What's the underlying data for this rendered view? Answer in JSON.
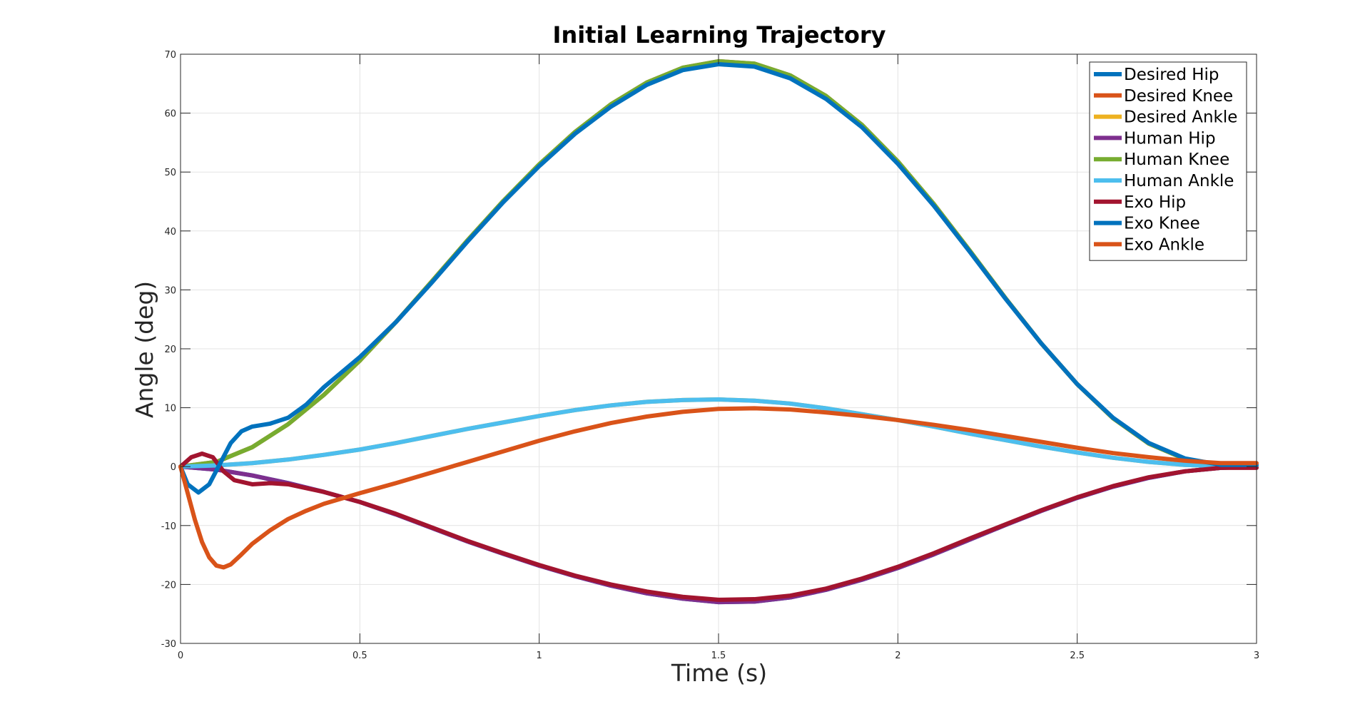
{
  "chart_data": {
    "type": "line",
    "title": "Initial Learning Trajectory",
    "xlabel": "Time (s)",
    "ylabel": "Angle (deg)",
    "xlim": [
      0,
      3
    ],
    "ylim": [
      -30,
      70
    ],
    "xticks": [
      0,
      0.5,
      1,
      1.5,
      2,
      2.5,
      3
    ],
    "xtick_labels": [
      "0",
      "0.5",
      "1",
      "1.5",
      "2",
      "2.5",
      "3"
    ],
    "yticks": [
      -30,
      -20,
      -10,
      0,
      10,
      20,
      30,
      40,
      50,
      60,
      70
    ],
    "ytick_labels": [
      "-30",
      "-20",
      "-10",
      "0",
      "10",
      "20",
      "30",
      "40",
      "50",
      "60",
      "70"
    ],
    "grid": true,
    "legend_position": "top-right",
    "series": [
      {
        "name": "Desired Hip",
        "color": "#0072BD",
        "x": [
          0,
          0.1,
          0.2,
          0.3,
          0.4,
          0.5,
          0.6,
          0.7,
          0.8,
          0.9,
          1.0,
          1.1,
          1.2,
          1.3,
          1.4,
          1.5,
          1.6,
          1.7,
          1.8,
          1.9,
          2.0,
          2.1,
          2.2,
          2.3,
          2.4,
          2.5,
          2.6,
          2.7,
          2.8,
          2.9,
          3.0
        ],
        "y": [
          0,
          -0.5,
          -1.5,
          -2.8,
          -4.3,
          -6.0,
          -8.1,
          -10.4,
          -12.7,
          -14.8,
          -16.8,
          -18.6,
          -20.2,
          -21.5,
          -22.4,
          -23.0,
          -22.9,
          -22.2,
          -20.9,
          -19.2,
          -17.2,
          -14.9,
          -12.4,
          -9.9,
          -7.5,
          -5.3,
          -3.4,
          -1.9,
          -0.8,
          -0.2,
          0
        ]
      },
      {
        "name": "Desired Knee",
        "color": "#D95319",
        "x": [
          0,
          0.1,
          0.2,
          0.3,
          0.4,
          0.5,
          0.6,
          0.7,
          0.8,
          0.9,
          1.0,
          1.1,
          1.2,
          1.3,
          1.4,
          1.5,
          1.6,
          1.7,
          1.8,
          1.9,
          2.0,
          2.1,
          2.2,
          2.3,
          2.4,
          2.5,
          2.6,
          2.7,
          2.8,
          2.9,
          3.0
        ],
        "y": [
          0,
          0.8,
          3.3,
          7.2,
          12.2,
          18.0,
          24.5,
          31.4,
          38.4,
          45.1,
          51.3,
          56.8,
          61.5,
          65.2,
          67.7,
          68.8,
          68.4,
          66.4,
          62.9,
          58.0,
          51.8,
          44.6,
          36.7,
          28.6,
          20.9,
          14.0,
          8.2,
          3.9,
          1.3,
          0.2,
          0
        ]
      },
      {
        "name": "Desired Ankle",
        "color": "#EDB120",
        "x": [
          0,
          0.1,
          0.2,
          0.3,
          0.4,
          0.5,
          0.6,
          0.7,
          0.8,
          0.9,
          1.0,
          1.1,
          1.2,
          1.3,
          1.4,
          1.5,
          1.6,
          1.7,
          1.8,
          1.9,
          2.0,
          2.1,
          2.2,
          2.3,
          2.4,
          2.5,
          2.6,
          2.7,
          2.8,
          2.9,
          3.0
        ],
        "y": [
          0,
          0.2,
          0.6,
          1.2,
          2.0,
          2.9,
          4.0,
          5.2,
          6.4,
          7.5,
          8.6,
          9.6,
          10.4,
          11.0,
          11.3,
          11.4,
          11.2,
          10.7,
          9.9,
          8.9,
          7.9,
          6.8,
          5.6,
          4.5,
          3.4,
          2.4,
          1.5,
          0.8,
          0.3,
          0.1,
          0
        ]
      },
      {
        "name": "Human Hip",
        "color": "#7E2F8E",
        "x": [
          0,
          0.1,
          0.2,
          0.3,
          0.4,
          0.5,
          0.6,
          0.7,
          0.8,
          0.9,
          1.0,
          1.1,
          1.2,
          1.3,
          1.4,
          1.5,
          1.6,
          1.7,
          1.8,
          1.9,
          2.0,
          2.1,
          2.2,
          2.3,
          2.4,
          2.5,
          2.6,
          2.7,
          2.8,
          2.9,
          3.0
        ],
        "y": [
          0,
          -0.5,
          -1.5,
          -2.8,
          -4.3,
          -6.0,
          -8.1,
          -10.4,
          -12.7,
          -14.8,
          -16.8,
          -18.6,
          -20.2,
          -21.5,
          -22.4,
          -23.0,
          -22.9,
          -22.2,
          -20.9,
          -19.2,
          -17.2,
          -14.9,
          -12.4,
          -9.9,
          -7.5,
          -5.3,
          -3.4,
          -1.9,
          -0.8,
          -0.2,
          0
        ]
      },
      {
        "name": "Human Knee",
        "color": "#77AC30",
        "x": [
          0,
          0.1,
          0.2,
          0.3,
          0.4,
          0.5,
          0.6,
          0.7,
          0.8,
          0.9,
          1.0,
          1.1,
          1.2,
          1.3,
          1.4,
          1.5,
          1.6,
          1.7,
          1.8,
          1.9,
          2.0,
          2.1,
          2.2,
          2.3,
          2.4,
          2.5,
          2.6,
          2.7,
          2.8,
          2.9,
          3.0
        ],
        "y": [
          0,
          0.8,
          3.3,
          7.2,
          12.2,
          18.0,
          24.5,
          31.4,
          38.4,
          45.1,
          51.3,
          56.8,
          61.5,
          65.2,
          67.7,
          68.8,
          68.4,
          66.4,
          62.9,
          58.0,
          51.8,
          44.6,
          36.7,
          28.6,
          20.9,
          14.0,
          8.2,
          3.9,
          1.3,
          0.2,
          0
        ]
      },
      {
        "name": "Human Ankle",
        "color": "#4DBEEE",
        "x": [
          0,
          0.1,
          0.2,
          0.3,
          0.4,
          0.5,
          0.6,
          0.7,
          0.8,
          0.9,
          1.0,
          1.1,
          1.2,
          1.3,
          1.4,
          1.5,
          1.6,
          1.7,
          1.8,
          1.9,
          2.0,
          2.1,
          2.2,
          2.3,
          2.4,
          2.5,
          2.6,
          2.7,
          2.8,
          2.9,
          3.0
        ],
        "y": [
          0,
          0.2,
          0.6,
          1.2,
          2.0,
          2.9,
          4.0,
          5.2,
          6.4,
          7.5,
          8.6,
          9.6,
          10.4,
          11.0,
          11.3,
          11.4,
          11.2,
          10.7,
          9.9,
          8.9,
          7.9,
          6.8,
          5.6,
          4.5,
          3.4,
          2.4,
          1.5,
          0.8,
          0.3,
          0.1,
          0
        ]
      },
      {
        "name": "Exo Hip",
        "color": "#A2142F",
        "x": [
          0,
          0.03,
          0.06,
          0.09,
          0.12,
          0.15,
          0.2,
          0.25,
          0.3,
          0.4,
          0.5,
          0.6,
          0.7,
          0.8,
          0.9,
          1.0,
          1.1,
          1.2,
          1.3,
          1.4,
          1.5,
          1.6,
          1.7,
          1.8,
          1.9,
          2.0,
          2.1,
          2.2,
          2.3,
          2.4,
          2.5,
          2.6,
          2.7,
          2.8,
          2.9,
          3.0
        ],
        "y": [
          0,
          1.6,
          2.2,
          1.6,
          -0.8,
          -2.3,
          -3.0,
          -2.8,
          -3.0,
          -4.3,
          -6.0,
          -8.0,
          -10.3,
          -12.6,
          -14.7,
          -16.7,
          -18.5,
          -20.0,
          -21.2,
          -22.1,
          -22.6,
          -22.5,
          -21.9,
          -20.7,
          -19.0,
          -17.0,
          -14.7,
          -12.2,
          -9.8,
          -7.4,
          -5.2,
          -3.3,
          -1.8,
          -0.8,
          -0.2,
          -0.2
        ]
      },
      {
        "name": "Exo Knee",
        "color": "#0072BD",
        "x": [
          0,
          0.02,
          0.05,
          0.08,
          0.11,
          0.14,
          0.17,
          0.2,
          0.25,
          0.3,
          0.35,
          0.4,
          0.5,
          0.6,
          0.7,
          0.8,
          0.9,
          1.0,
          1.1,
          1.2,
          1.3,
          1.4,
          1.5,
          1.6,
          1.7,
          1.8,
          1.9,
          2.0,
          2.1,
          2.2,
          2.3,
          2.4,
          2.5,
          2.6,
          2.7,
          2.8,
          2.9,
          3.0
        ],
        "y": [
          0,
          -3.0,
          -4.4,
          -3.0,
          0.5,
          4.0,
          6.0,
          6.8,
          7.3,
          8.3,
          10.5,
          13.5,
          18.6,
          24.5,
          31.2,
          38.2,
          44.9,
          51.0,
          56.5,
          61.1,
          64.8,
          67.3,
          68.3,
          67.9,
          65.9,
          62.4,
          57.6,
          51.4,
          44.3,
          36.5,
          28.5,
          20.9,
          14.0,
          8.3,
          4.0,
          1.4,
          0.3,
          0.3
        ]
      },
      {
        "name": "Exo Ankle",
        "color": "#D95319",
        "x": [
          0,
          0.02,
          0.04,
          0.06,
          0.08,
          0.1,
          0.12,
          0.14,
          0.17,
          0.2,
          0.25,
          0.3,
          0.35,
          0.4,
          0.5,
          0.6,
          0.7,
          0.8,
          0.9,
          1.0,
          1.1,
          1.2,
          1.3,
          1.4,
          1.5,
          1.6,
          1.7,
          1.8,
          1.9,
          2.0,
          2.1,
          2.2,
          2.3,
          2.4,
          2.5,
          2.6,
          2.7,
          2.8,
          2.9,
          3.0
        ],
        "y": [
          0,
          -4.5,
          -9.0,
          -12.8,
          -15.4,
          -16.8,
          -17.1,
          -16.6,
          -14.9,
          -13.1,
          -10.8,
          -8.9,
          -7.5,
          -6.3,
          -4.5,
          -2.8,
          -1.0,
          0.8,
          2.6,
          4.4,
          6.0,
          7.4,
          8.5,
          9.3,
          9.8,
          9.9,
          9.7,
          9.2,
          8.6,
          7.9,
          7.1,
          6.2,
          5.2,
          4.2,
          3.2,
          2.3,
          1.6,
          1.0,
          0.6,
          0.6
        ]
      }
    ]
  }
}
